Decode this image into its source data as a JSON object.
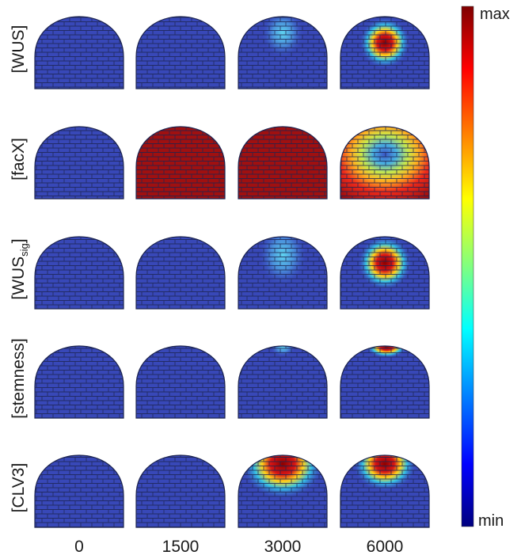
{
  "rows": [
    {
      "label": "[WUS]"
    },
    {
      "label": "[facX]"
    },
    {
      "label_parts": [
        "[WUS",
        "sig",
        "]"
      ]
    },
    {
      "label": "[stemness]"
    },
    {
      "label": "[CLV3]"
    }
  ],
  "columns": [
    "0",
    "1500",
    "3000",
    "6000"
  ],
  "colorbar": {
    "max": "max",
    "min": "min"
  }
}
